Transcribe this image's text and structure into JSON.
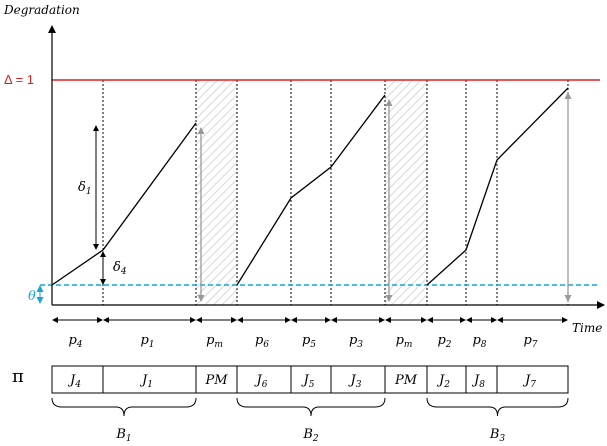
{
  "axes": {
    "y_label": "Degradation",
    "x_label": "Time"
  },
  "threshold_label": "Δ = 1",
  "theta_label": "θ",
  "deltas": {
    "delta1": "δ",
    "delta1_sub": "1",
    "delta4": "δ",
    "delta4_sub": "4"
  },
  "durations": [
    {
      "sym": "p",
      "sub": "4"
    },
    {
      "sym": "p",
      "sub": "1"
    },
    {
      "sym": "p",
      "sub": "m"
    },
    {
      "sym": "p",
      "sub": "6"
    },
    {
      "sym": "p",
      "sub": "5"
    },
    {
      "sym": "p",
      "sub": "3"
    },
    {
      "sym": "p",
      "sub": "m"
    },
    {
      "sym": "p",
      "sub": "2"
    },
    {
      "sym": "p",
      "sub": "8"
    },
    {
      "sym": "p",
      "sub": "7"
    }
  ],
  "sequence_symbol": "π",
  "sequence": [
    {
      "sym": "J",
      "sub": "4"
    },
    {
      "sym": "J",
      "sub": "1"
    },
    {
      "sym": "PM",
      "sub": ""
    },
    {
      "sym": "J",
      "sub": "6"
    },
    {
      "sym": "J",
      "sub": "5"
    },
    {
      "sym": "J",
      "sub": "3"
    },
    {
      "sym": "PM",
      "sub": ""
    },
    {
      "sym": "J",
      "sub": "2"
    },
    {
      "sym": "J",
      "sub": "8"
    },
    {
      "sym": "J",
      "sub": "7"
    }
  ],
  "batches": [
    {
      "sym": "B",
      "sub": "1"
    },
    {
      "sym": "B",
      "sub": "2"
    },
    {
      "sym": "B",
      "sub": "3"
    }
  ],
  "colors": {
    "threshold": "#e02020",
    "theta": "#1aa3d9",
    "axis": "#000000",
    "reset_arrow": "#9a9a9a",
    "hatch": "#d8d8d8"
  }
}
